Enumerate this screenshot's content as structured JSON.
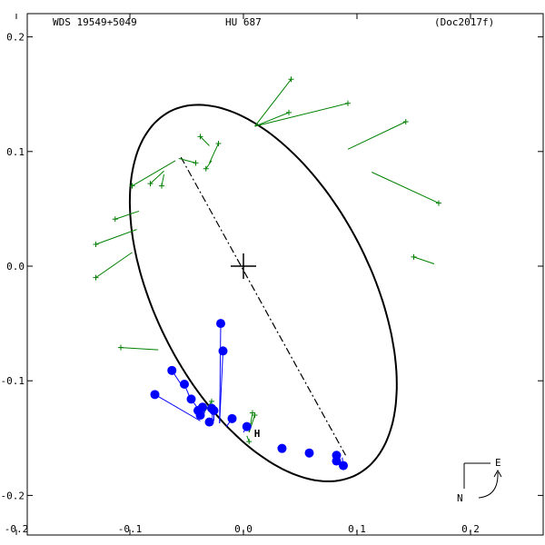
{
  "header": {
    "left": "WDS 19549+5049",
    "center": "HU  687",
    "right": "(Doc2017f)"
  },
  "compass": {
    "east_label": "E",
    "north_label": "N"
  },
  "colors": {
    "orbit": "#000000",
    "obs_blue": "#0000ff",
    "obs_green": "#008000",
    "hipparcos": "#ff0000"
  },
  "chart_data": {
    "type": "scatter",
    "xlim": [
      -0.21,
      0.26
    ],
    "ylim": [
      -0.23,
      0.21
    ],
    "x_ticks": [
      -0.2,
      -0.1,
      0.0,
      0.1,
      0.2
    ],
    "x_tick_labels": [
      "-0.2",
      "-0.1",
      "0.0",
      "0.1",
      "0.2"
    ],
    "y_ticks": [
      0.2,
      0.1,
      0.0,
      -0.1,
      -0.2
    ],
    "y_tick_labels": [
      "0.2",
      "0.1",
      "0.0",
      "-0.1",
      "-0.2"
    ],
    "grid": false,
    "center_marker": [
      0.0,
      0.0
    ],
    "orbit_ellipse": {
      "cx": 0.0175,
      "cy": -0.0235,
      "a": 0.1785,
      "b": 0.0945,
      "angle_deg": -62.5
    },
    "line_of_nodes": [
      [
        -0.055,
        0.095
      ],
      [
        0.09,
        -0.165
      ]
    ],
    "hipparcos_point": [
      0.012,
      -0.145
    ],
    "hipparcos_label": "H",
    "blue_series": [
      {
        "x": -0.078,
        "y": -0.112,
        "ox": -0.038,
        "oy": -0.135
      },
      {
        "x": -0.063,
        "y": -0.091,
        "ox": -0.055,
        "oy": -0.103
      },
      {
        "x": -0.052,
        "y": -0.103,
        "ox": -0.047,
        "oy": -0.115
      },
      {
        "x": -0.046,
        "y": -0.116,
        "ox": -0.041,
        "oy": -0.123
      },
      {
        "x": -0.04,
        "y": -0.126,
        "ox": -0.038,
        "oy": -0.126
      },
      {
        "x": -0.036,
        "y": -0.123,
        "ox": -0.034,
        "oy": -0.128
      },
      {
        "x": -0.038,
        "y": -0.13,
        "ox": -0.035,
        "oy": -0.131
      },
      {
        "x": -0.03,
        "y": -0.136,
        "ox": -0.03,
        "oy": -0.134
      },
      {
        "x": -0.028,
        "y": -0.124,
        "ox": -0.027,
        "oy": -0.135
      },
      {
        "x": -0.026,
        "y": -0.126,
        "ox": -0.026,
        "oy": -0.135
      },
      {
        "x": -0.02,
        "y": -0.05,
        "ox": -0.021,
        "oy": -0.137
      },
      {
        "x": -0.018,
        "y": -0.074,
        "ox": -0.021,
        "oy": -0.137
      },
      {
        "x": -0.01,
        "y": -0.133,
        "ox": -0.015,
        "oy": -0.14
      },
      {
        "x": 0.003,
        "y": -0.14,
        "ox": 0.0,
        "oy": -0.145
      },
      {
        "x": 0.034,
        "y": -0.159,
        "ox": 0.03,
        "oy": -0.158
      },
      {
        "x": 0.058,
        "y": -0.163,
        "ox": 0.055,
        "oy": -0.164
      },
      {
        "x": 0.082,
        "y": -0.165,
        "ox": 0.082,
        "oy": -0.166
      },
      {
        "x": 0.082,
        "y": -0.17,
        "ox": 0.084,
        "oy": -0.166
      },
      {
        "x": 0.088,
        "y": -0.174,
        "ox": 0.087,
        "oy": -0.167
      }
    ],
    "green_series": [
      {
        "x": 0.042,
        "y": 0.163,
        "ox": 0.01,
        "oy": 0.122
      },
      {
        "x": 0.092,
        "y": 0.142,
        "ox": 0.01,
        "oy": 0.122
      },
      {
        "x": 0.04,
        "y": 0.134,
        "ox": 0.01,
        "oy": 0.122
      },
      {
        "x": 0.143,
        "y": 0.126,
        "ox": 0.092,
        "oy": 0.102
      },
      {
        "x": 0.172,
        "y": 0.055,
        "ox": 0.113,
        "oy": 0.082
      },
      {
        "x": 0.15,
        "y": 0.008,
        "ox": 0.168,
        "oy": 0.002
      },
      {
        "x": -0.038,
        "y": 0.113,
        "ox": -0.03,
        "oy": 0.105
      },
      {
        "x": -0.022,
        "y": 0.107,
        "ox": -0.03,
        "oy": 0.09
      },
      {
        "x": -0.033,
        "y": 0.085,
        "ox": -0.028,
        "oy": 0.092
      },
      {
        "x": -0.042,
        "y": 0.09,
        "ox": -0.057,
        "oy": 0.094
      },
      {
        "x": -0.098,
        "y": 0.07,
        "ox": -0.06,
        "oy": 0.092
      },
      {
        "x": -0.082,
        "y": 0.072,
        "ox": -0.07,
        "oy": 0.083
      },
      {
        "x": -0.072,
        "y": 0.07,
        "ox": -0.07,
        "oy": 0.08
      },
      {
        "x": -0.113,
        "y": 0.041,
        "ox": -0.092,
        "oy": 0.048
      },
      {
        "x": -0.13,
        "y": 0.019,
        "ox": -0.094,
        "oy": 0.032
      },
      {
        "x": -0.13,
        "y": -0.01,
        "ox": -0.098,
        "oy": 0.012
      },
      {
        "x": -0.108,
        "y": -0.071,
        "ox": -0.075,
        "oy": -0.073
      },
      {
        "x": -0.028,
        "y": -0.118,
        "ox": -0.035,
        "oy": -0.128
      },
      {
        "x": 0.008,
        "y": -0.128,
        "ox": 0.005,
        "oy": -0.145
      },
      {
        "x": 0.01,
        "y": -0.13,
        "ox": 0.005,
        "oy": -0.145
      },
      {
        "x": 0.005,
        "y": -0.153,
        "ox": 0.003,
        "oy": -0.148
      }
    ]
  }
}
